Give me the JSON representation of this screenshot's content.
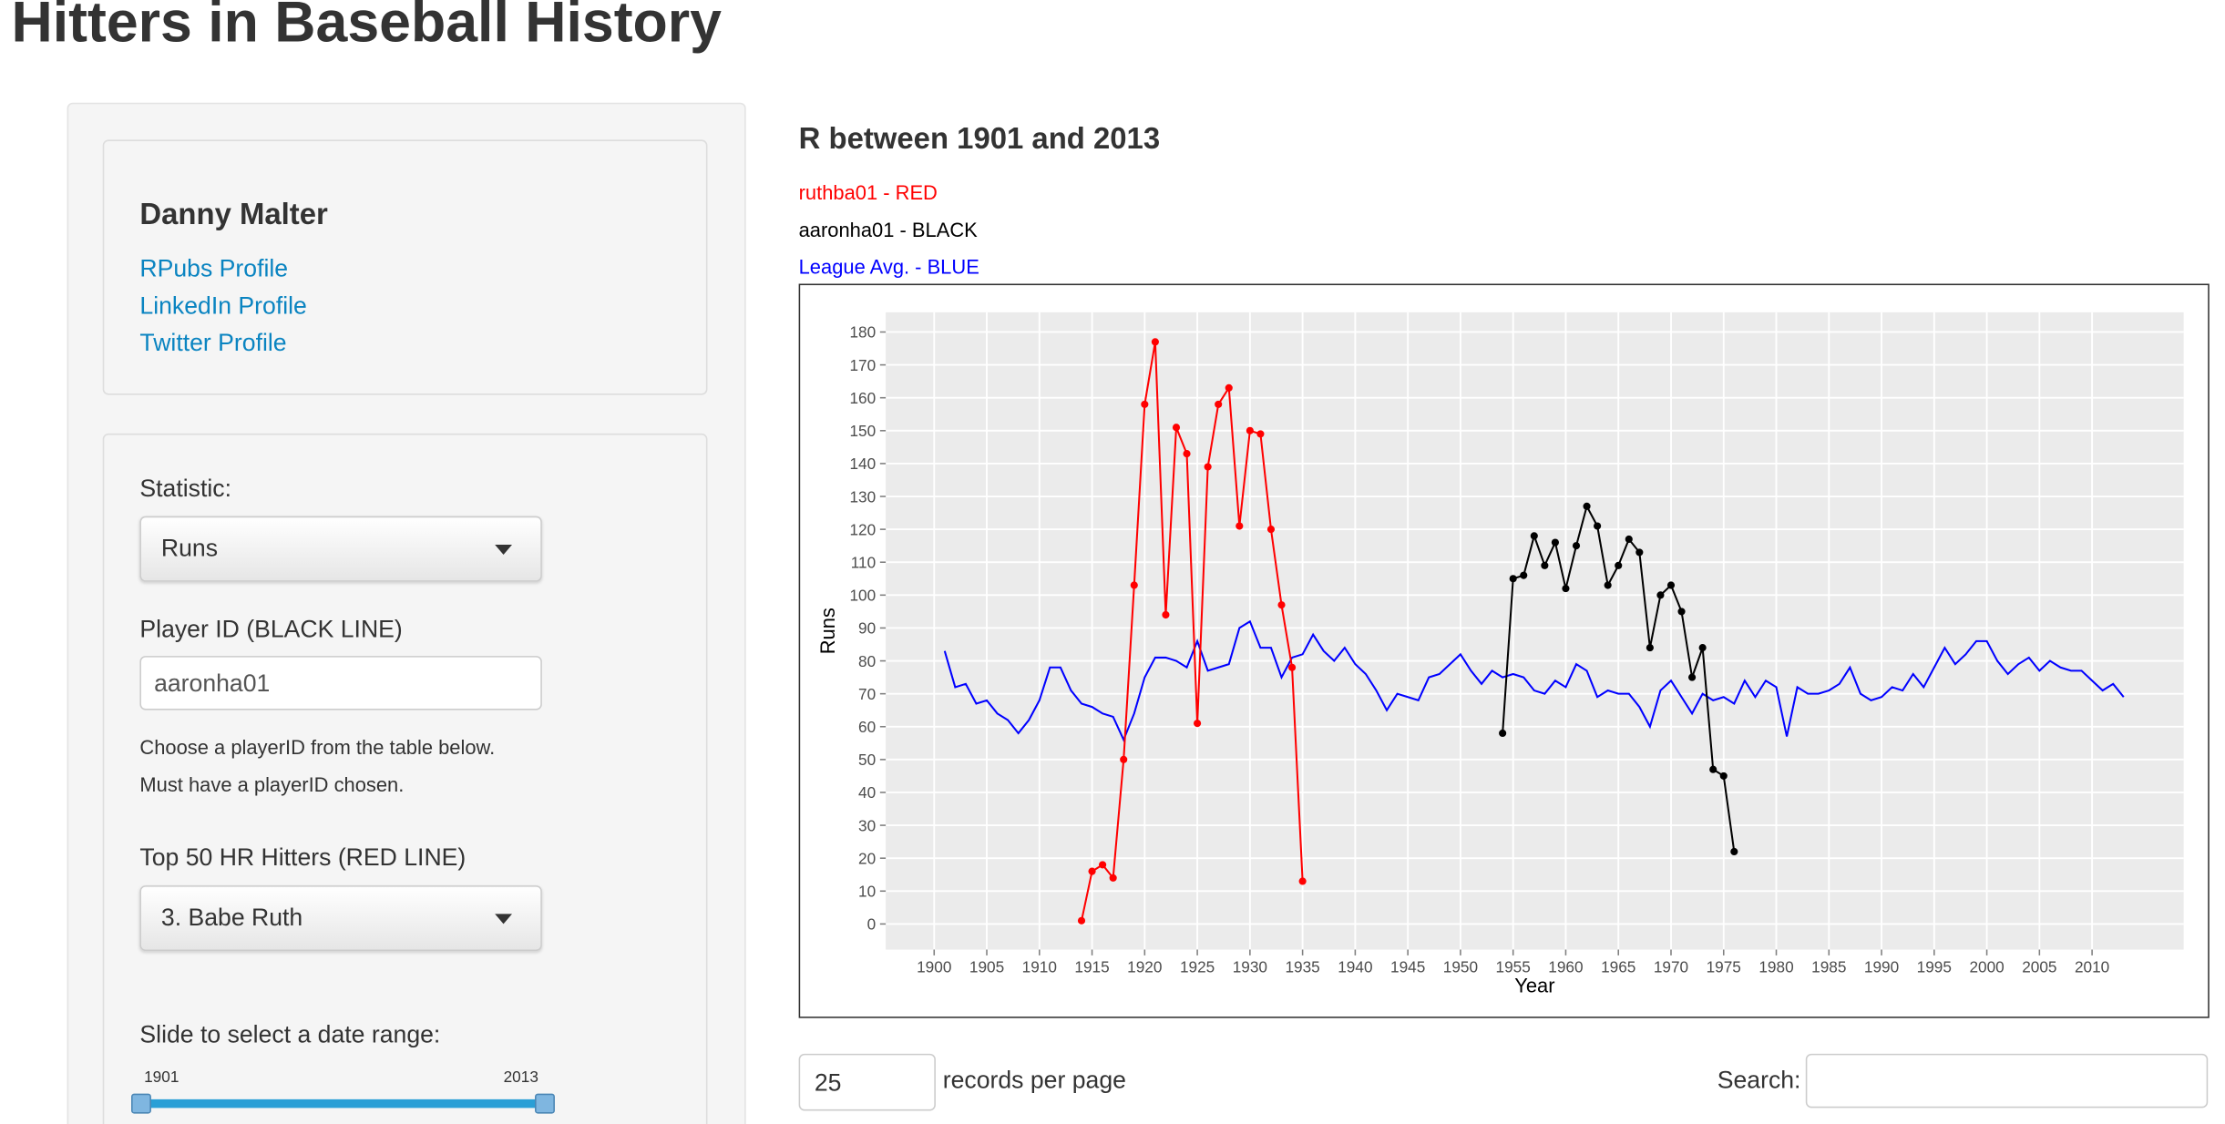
{
  "header": {
    "title": "Hitters in Baseball History"
  },
  "sidebar": {
    "author": "Danny Malter",
    "links": [
      "RPubs Profile",
      "LinkedIn Profile",
      "Twitter Profile"
    ],
    "statistic_label": "Statistic:",
    "statistic_value": "Runs",
    "player_label": "Player ID (BLACK LINE)",
    "player_value": "aaronha01",
    "help": [
      "Choose a playerID from the table below.",
      "Must have a playerID chosen."
    ],
    "hitters_label": "Top 50 HR Hitters (RED LINE)",
    "hitters_value": "3. Babe Ruth",
    "slider_label": "Slide to select a date range:",
    "slider": {
      "min": 1901,
      "max": 2013
    }
  },
  "table_controls": {
    "page_size": "25",
    "page_size_label": "records per page",
    "search_label": "Search:"
  },
  "chart_data": {
    "type": "line",
    "title": "R between 1901 and 2013",
    "x_label": "Year",
    "y_label": "Runs",
    "xlim": [
      1895.4,
      2018.7
    ],
    "ylim": [
      -7.8,
      186
    ],
    "xticks": [
      1900,
      1905,
      1910,
      1915,
      1920,
      1925,
      1930,
      1935,
      1940,
      1945,
      1950,
      1955,
      1960,
      1965,
      1970,
      1975,
      1980,
      1985,
      1990,
      1995,
      2000,
      2005,
      2010
    ],
    "yticks": [
      0,
      10,
      20,
      30,
      40,
      50,
      60,
      70,
      80,
      90,
      100,
      110,
      120,
      130,
      140,
      150,
      160,
      170,
      180
    ],
    "grid": true,
    "series": [
      {
        "name": "ruthba01 - RED",
        "color": "#ff0000",
        "markers": true,
        "x": [
          1914,
          1915,
          1916,
          1917,
          1918,
          1919,
          1920,
          1921,
          1922,
          1923,
          1924,
          1925,
          1926,
          1927,
          1928,
          1929,
          1930,
          1931,
          1932,
          1933,
          1934,
          1935
        ],
        "values": [
          1,
          16,
          18,
          14,
          50,
          103,
          158,
          177,
          94,
          151,
          143,
          61,
          139,
          158,
          163,
          121,
          150,
          149,
          120,
          97,
          78,
          13
        ]
      },
      {
        "name": "aaronha01 - BLACK",
        "color": "#000000",
        "markers": true,
        "x": [
          1954,
          1955,
          1956,
          1957,
          1958,
          1959,
          1960,
          1961,
          1962,
          1963,
          1964,
          1965,
          1966,
          1967,
          1968,
          1969,
          1970,
          1971,
          1972,
          1973,
          1974,
          1975,
          1976
        ],
        "values": [
          58,
          105,
          106,
          118,
          109,
          116,
          102,
          115,
          127,
          121,
          103,
          109,
          117,
          113,
          84,
          100,
          103,
          95,
          75,
          84,
          47,
          45,
          22
        ]
      },
      {
        "name": "League Avg. - BLUE",
        "color": "#0000ff",
        "markers": false,
        "x": [
          1901,
          1902,
          1903,
          1904,
          1905,
          1906,
          1907,
          1908,
          1909,
          1910,
          1911,
          1912,
          1913,
          1914,
          1915,
          1916,
          1917,
          1918,
          1919,
          1920,
          1921,
          1922,
          1923,
          1924,
          1925,
          1926,
          1927,
          1928,
          1929,
          1930,
          1931,
          1932,
          1933,
          1934,
          1935,
          1936,
          1937,
          1938,
          1939,
          1940,
          1941,
          1942,
          1943,
          1944,
          1945,
          1946,
          1947,
          1948,
          1949,
          1950,
          1951,
          1952,
          1953,
          1954,
          1955,
          1956,
          1957,
          1958,
          1959,
          1960,
          1961,
          1962,
          1963,
          1964,
          1965,
          1966,
          1967,
          1968,
          1969,
          1970,
          1971,
          1972,
          1973,
          1974,
          1975,
          1976,
          1977,
          1978,
          1979,
          1980,
          1981,
          1982,
          1983,
          1984,
          1985,
          1986,
          1987,
          1988,
          1989,
          1990,
          1991,
          1992,
          1993,
          1994,
          1995,
          1996,
          1997,
          1998,
          1999,
          2000,
          2001,
          2002,
          2003,
          2004,
          2005,
          2006,
          2007,
          2008,
          2009,
          2010,
          2011,
          2012,
          2013
        ],
        "values": [
          83,
          72,
          73,
          67,
          68,
          64,
          62,
          58,
          62,
          68,
          78,
          78,
          71,
          67,
          66,
          64,
          63,
          56,
          64,
          75,
          81,
          81,
          80,
          78,
          86,
          77,
          78,
          79,
          90,
          92,
          84,
          84,
          75,
          81,
          82,
          88,
          83,
          80,
          84,
          79,
          76,
          71,
          65,
          70,
          69,
          68,
          75,
          76,
          79,
          82,
          77,
          73,
          77,
          75,
          76,
          75,
          71,
          70,
          74,
          72,
          79,
          77,
          69,
          71,
          70,
          70,
          66,
          60,
          71,
          74,
          69,
          64,
          70,
          68,
          69,
          67,
          74,
          69,
          74,
          72,
          57,
          72,
          70,
          70,
          71,
          73,
          78,
          70,
          68,
          69,
          72,
          71,
          76,
          72,
          78,
          84,
          79,
          82,
          86,
          86,
          80,
          76,
          79,
          81,
          77,
          80,
          78,
          77,
          77,
          74,
          71,
          73,
          69
        ]
      }
    ]
  }
}
